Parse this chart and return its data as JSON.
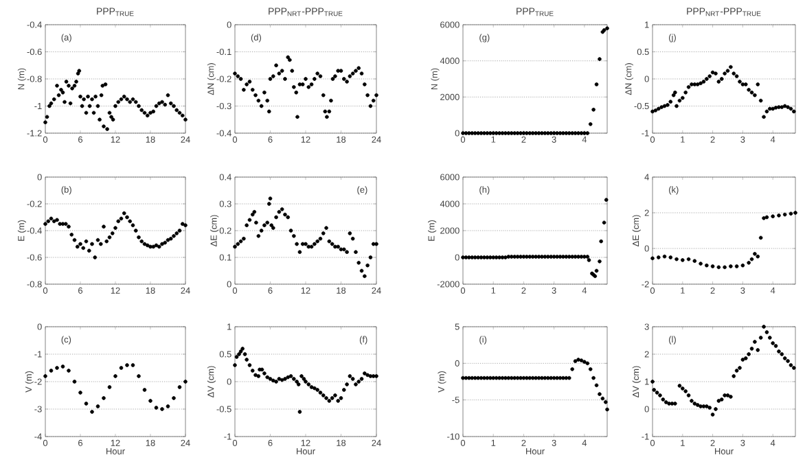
{
  "chart_data": [
    {
      "type": "scatter",
      "title": "PPP$_{TRUE}$",
      "ylabel": "N (m)",
      "annotations": [
        "(a)"
      ],
      "color": "#000000",
      "grid": "y",
      "xlim": [
        0,
        24
      ],
      "ylim": [
        -1.2,
        -0.4
      ],
      "xticks": [
        0,
        6,
        12,
        18,
        24
      ],
      "yticks": [
        -1.2,
        -1,
        -0.8,
        -0.6,
        -0.4
      ],
      "x": [
        0,
        0.3,
        0.7,
        1,
        1.5,
        2,
        2.3,
        2.7,
        3,
        3.3,
        3.6,
        4,
        4.3,
        4.6,
        5,
        5.3,
        5.6,
        5.8,
        6,
        6.3,
        6.6,
        7,
        7.3,
        7.6,
        8,
        8.3,
        8.6,
        9,
        9.3,
        9.6,
        9.8,
        10,
        10.3,
        10.6,
        11,
        11.3,
        11.6,
        12,
        12.5,
        13,
        13.5,
        14,
        14.5,
        15,
        15.5,
        16,
        16.5,
        17,
        17.5,
        18,
        18.5,
        19,
        19.5,
        20,
        20.5,
        21,
        21.5,
        22,
        22.5,
        23,
        23.5,
        24
      ],
      "values": [
        -1.12,
        -1.08,
        -1.0,
        -0.98,
        -0.95,
        -0.85,
        -0.92,
        -0.88,
        -0.9,
        -0.97,
        -0.82,
        -0.85,
        -0.98,
        -0.87,
        -0.85,
        -0.82,
        -0.76,
        -0.74,
        -0.93,
        -1.0,
        -0.95,
        -1.05,
        -0.93,
        -1.0,
        -0.95,
        -1.05,
        -0.93,
        -1.0,
        -1.1,
        -0.92,
        -0.85,
        -1.15,
        -0.84,
        -1.17,
        -1.05,
        -1.08,
        -1.1,
        -1.0,
        -0.97,
        -0.95,
        -0.93,
        -0.95,
        -0.97,
        -0.95,
        -0.97,
        -1.0,
        -1.03,
        -1.05,
        -1.07,
        -1.05,
        -1.04,
        -1.0,
        -0.98,
        -0.97,
        -0.99,
        -0.92,
        -0.98,
        -1.0,
        -1.03,
        -1.05,
        -1.07,
        -1.1
      ]
    },
    {
      "type": "scatter",
      "title": "PPP$_{NRT}$-PPP$_{TRUE}$",
      "ylabel": "ΔN (cm)",
      "annotations": [
        "(d)"
      ],
      "color": "#000000",
      "grid": "y",
      "xlim": [
        0,
        24
      ],
      "ylim": [
        -0.4,
        0
      ],
      "xticks": [
        0,
        6,
        12,
        18,
        24
      ],
      "yticks": [
        -0.4,
        -0.3,
        -0.2,
        -0.1,
        0
      ],
      "x": [
        0,
        0.5,
        1,
        1.5,
        2,
        2.5,
        3,
        3.5,
        4,
        4.5,
        5,
        5.5,
        5.8,
        6,
        6.5,
        7,
        7.5,
        8,
        8.5,
        9,
        9.3,
        9.7,
        10,
        10.4,
        10.6,
        11,
        11.5,
        12,
        12.5,
        13,
        13.5,
        14,
        14.5,
        15,
        15.3,
        15.6,
        16,
        16.3,
        16.6,
        17,
        17.5,
        18,
        18.5,
        19,
        19.5,
        20,
        20.5,
        21,
        21.5,
        22,
        22.5,
        23,
        23.5,
        24
      ],
      "values": [
        -0.18,
        -0.19,
        -0.2,
        -0.24,
        -0.22,
        -0.21,
        -0.24,
        -0.26,
        -0.28,
        -0.3,
        -0.25,
        -0.28,
        -0.32,
        -0.2,
        -0.19,
        -0.15,
        -0.18,
        -0.17,
        -0.2,
        -0.12,
        -0.13,
        -0.17,
        -0.23,
        -0.25,
        -0.34,
        -0.22,
        -0.22,
        -0.2,
        -0.23,
        -0.22,
        -0.2,
        -0.18,
        -0.19,
        -0.26,
        -0.32,
        -0.34,
        -0.32,
        -0.28,
        -0.2,
        -0.19,
        -0.17,
        -0.17,
        -0.2,
        -0.21,
        -0.19,
        -0.18,
        -0.17,
        -0.16,
        -0.18,
        -0.22,
        -0.26,
        -0.3,
        -0.28,
        -0.26
      ]
    },
    {
      "type": "scatter",
      "title": "PPP$_{TRUE}$",
      "ylabel": "N (m)",
      "annotations": [
        "(g)"
      ],
      "color": "#000000",
      "grid": "y",
      "xlim": [
        0,
        4.75
      ],
      "ylim": [
        0,
        6000
      ],
      "xticks": [
        0,
        1,
        2,
        3,
        4
      ],
      "yticks": [
        0,
        2000,
        4000,
        6000
      ],
      "x": [
        0,
        0.1,
        0.2,
        0.3,
        0.4,
        0.5,
        0.6,
        0.7,
        0.8,
        0.9,
        1,
        1.1,
        1.2,
        1.3,
        1.4,
        1.5,
        1.6,
        1.7,
        1.8,
        1.9,
        2,
        2.1,
        2.2,
        2.3,
        2.4,
        2.5,
        2.6,
        2.7,
        2.8,
        2.9,
        3,
        3.1,
        3.2,
        3.3,
        3.4,
        3.5,
        3.6,
        3.7,
        3.8,
        3.9,
        4,
        4.1,
        4.2,
        4.3,
        4.4,
        4.5,
        4.6,
        4.65,
        4.7,
        4.75
      ],
      "values": [
        0,
        0,
        0,
        0,
        0,
        0,
        0,
        0,
        0,
        0,
        0,
        0,
        0,
        0,
        0,
        0,
        0,
        0,
        0,
        0,
        0,
        0,
        0,
        0,
        0,
        0,
        0,
        0,
        0,
        0,
        0,
        0,
        0,
        0,
        0,
        0,
        0,
        0,
        0,
        0,
        0,
        0,
        500,
        1300,
        2700,
        4100,
        5600,
        5700,
        null,
        5800
      ]
    },
    {
      "type": "scatter",
      "title": "PPP$_{NRT}$-PPP$_{TRUE}$",
      "ylabel": "ΔN (cm)",
      "annotations": [
        "(j)"
      ],
      "color": "#000000",
      "grid": "y",
      "xlim": [
        0,
        4.75
      ],
      "ylim": [
        -1,
        1
      ],
      "xticks": [
        0,
        1,
        2,
        3,
        4
      ],
      "yticks": [
        -1,
        -0.5,
        0,
        0.5,
        1
      ],
      "x": [
        0,
        0.1,
        0.2,
        0.3,
        0.4,
        0.5,
        0.6,
        0.7,
        0.75,
        0.8,
        0.9,
        1,
        1.1,
        1.2,
        1.3,
        1.4,
        1.5,
        1.6,
        1.7,
        1.8,
        1.9,
        2,
        2.1,
        2.2,
        2.3,
        2.4,
        2.5,
        2.6,
        2.7,
        2.8,
        2.9,
        3,
        3.1,
        3.2,
        3.3,
        3.4,
        3.5,
        3.6,
        3.7,
        3.8,
        3.9,
        4,
        4.1,
        4.2,
        4.3,
        4.4,
        4.5,
        4.6,
        4.7
      ],
      "values": [
        -0.6,
        -0.58,
        -0.55,
        -0.52,
        -0.5,
        -0.48,
        -0.42,
        -0.3,
        -0.25,
        -0.5,
        -0.4,
        -0.35,
        -0.25,
        -0.15,
        -0.1,
        -0.1,
        -0.1,
        -0.08,
        -0.05,
        0,
        0.05,
        0.12,
        0.1,
        -0.05,
        0,
        0.1,
        0.15,
        0.22,
        0.1,
        0.05,
        -0.05,
        -0.1,
        -0.1,
        -0.2,
        -0.25,
        -0.3,
        -0.1,
        -0.4,
        -0.7,
        -0.6,
        -0.55,
        -0.55,
        -0.53,
        -0.52,
        -0.52,
        -0.5,
        -0.52,
        -0.55,
        -0.6
      ]
    },
    {
      "type": "scatter",
      "ylabel": "E (m)",
      "annotations": [
        "(b)"
      ],
      "color": "#000000",
      "grid": "y",
      "xlim": [
        0,
        24
      ],
      "ylim": [
        -0.8,
        0
      ],
      "xticks": [
        0,
        6,
        12,
        18,
        24
      ],
      "yticks": [
        -0.8,
        -0.6,
        -0.4,
        -0.2,
        0
      ],
      "x": [
        0,
        0.5,
        1,
        1.5,
        2,
        2.5,
        3,
        3.5,
        4,
        4.5,
        5,
        5.5,
        6,
        6.5,
        7,
        7.5,
        8,
        8.5,
        9,
        9.5,
        10,
        10.5,
        11,
        11.5,
        12,
        12.5,
        13,
        13.5,
        14,
        14.5,
        15,
        15.5,
        16,
        16.5,
        17,
        17.5,
        18,
        18.5,
        19,
        19.5,
        20,
        20.5,
        21,
        21.5,
        22,
        22.5,
        23,
        23.5,
        24
      ],
      "values": [
        -0.35,
        -0.33,
        -0.31,
        -0.33,
        -0.32,
        -0.35,
        -0.35,
        -0.35,
        -0.37,
        -0.43,
        -0.47,
        -0.52,
        -0.5,
        -0.53,
        -0.48,
        -0.55,
        -0.5,
        -0.6,
        -0.47,
        -0.5,
        -0.37,
        -0.48,
        -0.45,
        -0.42,
        -0.38,
        -0.33,
        -0.31,
        -0.27,
        -0.3,
        -0.33,
        -0.36,
        -0.4,
        -0.45,
        -0.48,
        -0.5,
        -0.51,
        -0.52,
        -0.52,
        -0.51,
        -0.52,
        -0.5,
        -0.49,
        -0.47,
        -0.46,
        -0.44,
        -0.42,
        -0.4,
        -0.35,
        -0.36
      ]
    },
    {
      "type": "scatter",
      "ylabel": "ΔE (cm)",
      "annotations": [
        "(e)"
      ],
      "color": "#000000",
      "grid": "y",
      "xlim": [
        0,
        24
      ],
      "ylim": [
        0,
        0.4
      ],
      "xticks": [
        0,
        6,
        12,
        18,
        24
      ],
      "yticks": [
        0,
        0.1,
        0.2,
        0.3,
        0.4
      ],
      "x": [
        0,
        0.5,
        1,
        1.5,
        2,
        2.5,
        3,
        3.3,
        3.6,
        4,
        4.5,
        5,
        5.5,
        5.8,
        6,
        6.2,
        6.5,
        7,
        7.5,
        8,
        8.5,
        9,
        9.5,
        10,
        10.5,
        11,
        11.5,
        12,
        12.5,
        13,
        13.5,
        14,
        14.5,
        15,
        15.5,
        16,
        16.5,
        17,
        17.5,
        18,
        18.5,
        19,
        19.5,
        20,
        20.5,
        21,
        21.5,
        22,
        22.5,
        23,
        23.5,
        24
      ],
      "values": [
        0.14,
        0.15,
        0.16,
        0.17,
        0.22,
        0.24,
        0.26,
        0.27,
        0.23,
        0.18,
        0.2,
        0.22,
        0.23,
        0.3,
        0.32,
        0.22,
        0.21,
        0.25,
        0.27,
        0.28,
        0.26,
        0.25,
        0.2,
        0.18,
        0.15,
        0.12,
        0.15,
        0.15,
        0.14,
        0.14,
        0.15,
        0.16,
        0.17,
        0.19,
        0.21,
        0.16,
        0.15,
        0.14,
        0.14,
        0.13,
        0.13,
        0.12,
        0.19,
        0.17,
        0.12,
        0.08,
        0.05,
        0.03,
        0.07,
        0.1,
        0.15,
        0.15
      ]
    },
    {
      "type": "scatter",
      "ylabel": "E (m)",
      "annotations": [
        "(h)"
      ],
      "color": "#000000",
      "grid": "y",
      "xlim": [
        0,
        4.75
      ],
      "ylim": [
        -2000,
        6000
      ],
      "xticks": [
        0,
        1,
        2,
        3,
        4
      ],
      "yticks": [
        -2000,
        0,
        2000,
        4000,
        6000
      ],
      "x": [
        0,
        0.1,
        0.2,
        0.3,
        0.4,
        0.5,
        0.6,
        0.7,
        0.8,
        0.9,
        1,
        1.1,
        1.2,
        1.3,
        1.4,
        1.5,
        1.6,
        1.7,
        1.8,
        1.9,
        2,
        2.1,
        2.2,
        2.3,
        2.4,
        2.5,
        2.6,
        2.7,
        2.8,
        2.9,
        3,
        3.1,
        3.2,
        3.3,
        3.4,
        3.5,
        3.6,
        3.7,
        3.8,
        3.9,
        4,
        4.1,
        4.15,
        4.25,
        4.3,
        4.35,
        4.4,
        4.5,
        4.55,
        4.65,
        4.72
      ],
      "values": [
        0,
        0,
        0,
        0,
        0,
        0,
        0,
        0,
        0,
        0,
        0,
        0,
        0,
        0,
        0,
        50,
        50,
        50,
        50,
        50,
        50,
        50,
        50,
        50,
        50,
        50,
        50,
        50,
        50,
        50,
        50,
        50,
        50,
        50,
        50,
        50,
        50,
        50,
        50,
        50,
        50,
        50,
        -200,
        -1200,
        -1300,
        -1400,
        -1000,
        -300,
        1200,
        2600,
        4300
      ]
    },
    {
      "type": "scatter",
      "ylabel": "ΔE (cm)",
      "annotations": [
        "(k)"
      ],
      "color": "#000000",
      "grid": "y",
      "xlim": [
        0,
        4.75
      ],
      "ylim": [
        -2,
        4
      ],
      "xticks": [
        0,
        1,
        2,
        3,
        4
      ],
      "yticks": [
        -2,
        0,
        2,
        4
      ],
      "x": [
        0,
        0.2,
        0.4,
        0.6,
        0.8,
        1,
        1.2,
        1.4,
        1.6,
        1.8,
        2,
        2.2,
        2.4,
        2.6,
        2.8,
        3,
        3.2,
        3.3,
        3.4,
        3.5,
        3.6,
        3.7,
        3.8,
        4,
        4.2,
        4.4,
        4.6,
        4.75
      ],
      "values": [
        -0.55,
        -0.5,
        -0.45,
        -0.5,
        -0.6,
        -0.65,
        -0.6,
        -0.7,
        -0.85,
        -0.95,
        -1,
        -1.05,
        -1.05,
        -1,
        -1,
        -0.95,
        -0.8,
        -0.6,
        -0.3,
        -0.45,
        0.6,
        1.7,
        1.75,
        1.8,
        1.85,
        1.9,
        1.95,
        2
      ]
    },
    {
      "type": "scatter",
      "ylabel": "V (m)",
      "xlabel": "Hour",
      "annotations": [
        "(c)"
      ],
      "color": "#000000",
      "grid": "y",
      "xlim": [
        0,
        24
      ],
      "ylim": [
        -4,
        0
      ],
      "xticks": [
        0,
        6,
        12,
        18,
        24
      ],
      "yticks": [
        -4,
        -3,
        -2,
        -1,
        0
      ],
      "x": [
        0,
        1,
        2,
        3,
        4,
        5,
        6,
        7,
        8,
        9,
        10,
        11,
        12,
        13,
        14,
        15,
        16,
        17,
        18,
        19,
        20,
        21,
        22,
        23,
        24
      ],
      "values": [
        -1.8,
        -1.6,
        -1.5,
        -1.45,
        -1.6,
        -2,
        -2.4,
        -2.8,
        -3.1,
        -2.9,
        -2.6,
        -2.2,
        -1.8,
        -1.5,
        -1.4,
        -1.4,
        -1.8,
        -2.3,
        -2.7,
        -2.95,
        -3,
        -2.9,
        -2.6,
        -2.2,
        -2
      ]
    },
    {
      "type": "scatter",
      "ylabel": "ΔV (cm)",
      "xlabel": "Hour",
      "annotations": [
        "(f)"
      ],
      "color": "#000000",
      "grid": "y",
      "xlim": [
        0,
        24
      ],
      "ylim": [
        -1,
        1
      ],
      "xticks": [
        0,
        6,
        12,
        18,
        24
      ],
      "yticks": [
        -1,
        -0.5,
        0,
        0.5,
        1
      ],
      "x": [
        0,
        0.3,
        0.7,
        1,
        1.3,
        1.7,
        2,
        2.5,
        3,
        3.5,
        4,
        4.2,
        4.6,
        5,
        5.5,
        6,
        6.5,
        7,
        7.5,
        8,
        8.5,
        9,
        9.5,
        10,
        10.5,
        10.8,
        11,
        11.3,
        11.7,
        12,
        12.5,
        13,
        13.5,
        14,
        14.5,
        15,
        15.5,
        16,
        16.5,
        17,
        17.5,
        18,
        18.5,
        19,
        19.5,
        20,
        20.5,
        21,
        21.5,
        22,
        22.5,
        23,
        23.5,
        24
      ],
      "values": [
        0.3,
        0.45,
        0.5,
        0.55,
        0.6,
        0.5,
        0.4,
        0.3,
        0.2,
        0.12,
        0.1,
        0.22,
        0.22,
        0.15,
        0.08,
        0.05,
        0.02,
        0,
        0.05,
        0.03,
        0.05,
        0.08,
        0.1,
        0.05,
        0,
        -0.05,
        -0.55,
        0.1,
        0.05,
        0,
        -0.05,
        -0.1,
        -0.12,
        -0.15,
        -0.2,
        -0.25,
        -0.3,
        -0.35,
        -0.3,
        -0.25,
        -0.35,
        -0.3,
        -0.15,
        -0.05,
        0.1,
        0.05,
        -0.05,
        0,
        0.05,
        0.15,
        0.12,
        0.1,
        0.1,
        0.1
      ]
    },
    {
      "type": "scatter",
      "ylabel": "V (m)",
      "xlabel": "Hour",
      "annotations": [
        "(i)"
      ],
      "color": "#000000",
      "grid": "y",
      "xlim": [
        0,
        4.75
      ],
      "ylim": [
        -10,
        5
      ],
      "xticks": [
        0,
        1,
        2,
        3,
        4
      ],
      "yticks": [
        -10,
        -5,
        0,
        5
      ],
      "x": [
        0,
        0.1,
        0.2,
        0.3,
        0.4,
        0.5,
        0.6,
        0.7,
        0.8,
        0.9,
        1,
        1.1,
        1.2,
        1.3,
        1.4,
        1.5,
        1.6,
        1.7,
        1.8,
        1.9,
        2,
        2.1,
        2.2,
        2.3,
        2.4,
        2.5,
        2.6,
        2.7,
        2.8,
        2.9,
        3,
        3.1,
        3.2,
        3.3,
        3.4,
        3.5,
        3.6,
        3.7,
        3.8,
        3.9,
        4,
        4.1,
        4.2,
        4.3,
        4.4,
        4.5,
        4.6,
        4.7,
        4.75
      ],
      "values": [
        -2,
        -2,
        -2,
        -2,
        -2,
        -2,
        -2,
        -2,
        -2,
        -2,
        -2,
        -2,
        -2,
        -2,
        -2,
        -2,
        -2,
        -2,
        -2,
        -2,
        -2,
        -2,
        -2,
        -2,
        -2,
        -2,
        -2,
        -2,
        -2,
        -2,
        -2,
        -2,
        -2,
        -2,
        -2,
        -2,
        -0.8,
        0.3,
        0.5,
        0.4,
        0.2,
        0,
        -0.8,
        -2,
        -3,
        -4.2,
        -4.8,
        -5.3,
        -6.3
      ]
    },
    {
      "type": "scatter",
      "ylabel": "ΔV (cm)",
      "xlabel": "Hour",
      "annotations": [
        "(l)"
      ],
      "color": "#000000",
      "grid": "y",
      "xlim": [
        0,
        4.75
      ],
      "ylim": [
        -1,
        3
      ],
      "xticks": [
        0,
        1,
        2,
        3,
        4
      ],
      "yticks": [
        -1,
        0,
        1,
        2,
        3
      ],
      "x": [
        0,
        0.05,
        0.15,
        0.25,
        0.35,
        0.45,
        0.55,
        0.65,
        0.75,
        0.8,
        0.9,
        1,
        1.1,
        1.2,
        1.3,
        1.4,
        1.5,
        1.6,
        1.7,
        1.8,
        1.9,
        2,
        2.1,
        2.2,
        2.3,
        2.4,
        2.5,
        2.6,
        2.7,
        2.8,
        2.9,
        3,
        3.1,
        3.2,
        3.3,
        3.4,
        3.5,
        3.6,
        3.7,
        3.8,
        3.9,
        4,
        4.1,
        4.2,
        4.3,
        4.4,
        4.5,
        4.6,
        4.7
      ],
      "values": [
        1,
        0.7,
        0.6,
        0.5,
        0.35,
        0.25,
        0.2,
        0.2,
        0.2,
        null,
        0.85,
        0.75,
        0.65,
        0.5,
        0.3,
        0.2,
        0.15,
        0.1,
        0.1,
        0.1,
        0.05,
        -0.2,
        0,
        0.3,
        0.35,
        0.5,
        0.5,
        0.45,
        1.2,
        1.4,
        1.5,
        1.8,
        1.85,
        2,
        2.2,
        2.45,
        2.15,
        2.6,
        3,
        2.8,
        2.6,
        2.4,
        2.3,
        2.1,
        2,
        1.85,
        1.75,
        1.6,
        1.5
      ]
    }
  ]
}
